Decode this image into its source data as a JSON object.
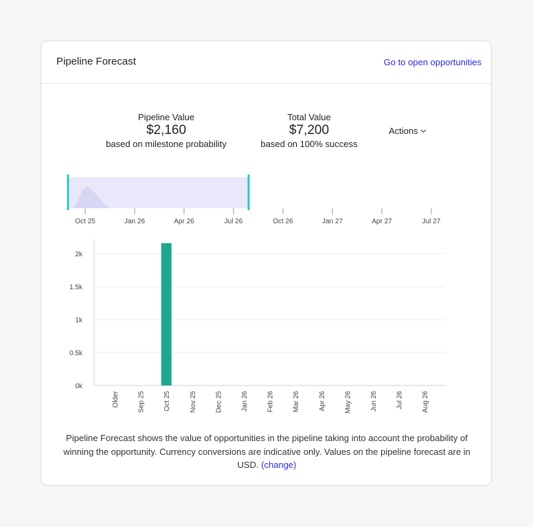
{
  "card": {
    "title": "Pipeline Forecast",
    "open_opportunities_link": "Go to open opportunities"
  },
  "summary": {
    "pipeline": {
      "label": "Pipeline Value",
      "value": "$2,160",
      "sub": "based on milestone probability"
    },
    "total": {
      "label": "Total Value",
      "value": "$7,200",
      "sub": "based on 100% success"
    },
    "actions_label": "Actions"
  },
  "navigator": {
    "tick_labels": [
      "Oct 25",
      "Jan 26",
      "Apr 26",
      "Jul 26",
      "Oct 26",
      "Jan 27",
      "Apr 27",
      "Jul 27"
    ],
    "selection_start": "Oct 25",
    "selection_end": "Jul 26"
  },
  "colors": {
    "bar": "#1fa88e",
    "navigator_selection": "#e9e8fb",
    "navigator_handle": "#27c7c7",
    "link": "#2d2ad1"
  },
  "chart_data": {
    "type": "bar",
    "categories": [
      "Older",
      "Sep 25",
      "Oct 25",
      "Nov 25",
      "Dec 25",
      "Jan 26",
      "Feb 26",
      "Mar 26",
      "Apr 26",
      "May 26",
      "Jun 26",
      "Jul 26",
      "Aug 26"
    ],
    "values": [
      0,
      0,
      2160,
      0,
      0,
      0,
      0,
      0,
      0,
      0,
      0,
      0,
      0
    ],
    "ytick_labels": [
      "0k",
      "0.5k",
      "1k",
      "1.5k",
      "2k"
    ],
    "yticks": [
      0,
      500,
      1000,
      1500,
      2000
    ],
    "ylim": [
      0,
      2200
    ],
    "grid": true
  },
  "footnote": {
    "text": "Pipeline Forecast shows the value of opportunities in the pipeline taking into account the probability of winning the opportunity. Currency conversions are indicative only. Values on the pipeline forecast are in USD.",
    "change_link": "(change)"
  }
}
